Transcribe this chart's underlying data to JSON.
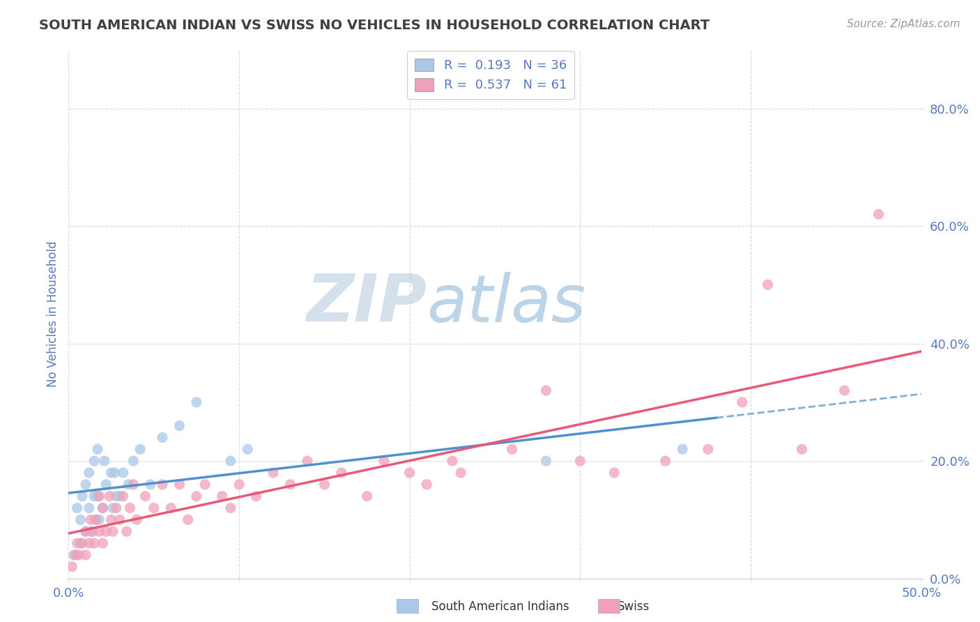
{
  "title": "SOUTH AMERICAN INDIAN VS SWISS NO VEHICLES IN HOUSEHOLD CORRELATION CHART",
  "source": "Source: ZipAtlas.com",
  "ylabel": "No Vehicles in Household",
  "xlim": [
    0.0,
    0.5
  ],
  "ylim": [
    0.0,
    0.9
  ],
  "xticks": [
    0.0,
    0.1,
    0.2,
    0.3,
    0.4,
    0.5
  ],
  "yticks": [
    0.0,
    0.2,
    0.4,
    0.6,
    0.8
  ],
  "xticklabels_sparse": [
    "0.0%",
    "",
    "",
    "",
    "",
    "50.0%"
  ],
  "yticklabels": [
    "0.0%",
    "20.0%",
    "40.0%",
    "60.0%",
    "80.0%"
  ],
  "r_blue": 0.193,
  "n_blue": 36,
  "r_pink": 0.537,
  "n_pink": 61,
  "color_blue": "#aac8e8",
  "color_pink": "#f0a0b8",
  "line_blue_solid": "#5090d0",
  "line_blue_dashed": "#80b0d8",
  "line_pink": "#e85878",
  "watermark_zip": "ZIP",
  "watermark_atlas": "atlas",
  "watermark_color_zip": "#b8cce0",
  "watermark_color_atlas": "#90b8d8",
  "title_color": "#404040",
  "axis_label_color": "#5878c0",
  "tick_color": "#5878c0",
  "grid_color": "#d0d0d0",
  "legend_label1": "R =  0.193   N = 36",
  "legend_label2": "R =  0.537   N = 61",
  "bottom_label1": "South American Indians",
  "bottom_label2": "Swiss",
  "blue_scatter_x": [
    0.003,
    0.005,
    0.007,
    0.007,
    0.008,
    0.01,
    0.01,
    0.012,
    0.012,
    0.013,
    0.015,
    0.015,
    0.016,
    0.017,
    0.017,
    0.018,
    0.02,
    0.021,
    0.022,
    0.025,
    0.026,
    0.027,
    0.028,
    0.03,
    0.032,
    0.035,
    0.038,
    0.042,
    0.048,
    0.055,
    0.065,
    0.075,
    0.095,
    0.105,
    0.28,
    0.36
  ],
  "blue_scatter_y": [
    0.04,
    0.12,
    0.06,
    0.1,
    0.14,
    0.08,
    0.16,
    0.12,
    0.18,
    0.08,
    0.14,
    0.2,
    0.1,
    0.14,
    0.22,
    0.1,
    0.12,
    0.2,
    0.16,
    0.18,
    0.12,
    0.18,
    0.14,
    0.14,
    0.18,
    0.16,
    0.2,
    0.22,
    0.16,
    0.24,
    0.26,
    0.3,
    0.2,
    0.22,
    0.2,
    0.22
  ],
  "pink_scatter_x": [
    0.002,
    0.004,
    0.005,
    0.006,
    0.008,
    0.01,
    0.01,
    0.012,
    0.013,
    0.014,
    0.015,
    0.016,
    0.018,
    0.018,
    0.02,
    0.02,
    0.022,
    0.024,
    0.025,
    0.026,
    0.028,
    0.03,
    0.032,
    0.034,
    0.036,
    0.038,
    0.04,
    0.045,
    0.05,
    0.055,
    0.06,
    0.065,
    0.07,
    0.075,
    0.08,
    0.09,
    0.095,
    0.1,
    0.11,
    0.12,
    0.13,
    0.14,
    0.15,
    0.16,
    0.175,
    0.185,
    0.2,
    0.21,
    0.225,
    0.23,
    0.26,
    0.28,
    0.3,
    0.32,
    0.35,
    0.375,
    0.395,
    0.41,
    0.43,
    0.455,
    0.475
  ],
  "pink_scatter_y": [
    0.02,
    0.04,
    0.06,
    0.04,
    0.06,
    0.04,
    0.08,
    0.06,
    0.1,
    0.08,
    0.06,
    0.1,
    0.08,
    0.14,
    0.06,
    0.12,
    0.08,
    0.14,
    0.1,
    0.08,
    0.12,
    0.1,
    0.14,
    0.08,
    0.12,
    0.16,
    0.1,
    0.14,
    0.12,
    0.16,
    0.12,
    0.16,
    0.1,
    0.14,
    0.16,
    0.14,
    0.12,
    0.16,
    0.14,
    0.18,
    0.16,
    0.2,
    0.16,
    0.18,
    0.14,
    0.2,
    0.18,
    0.16,
    0.2,
    0.18,
    0.22,
    0.32,
    0.2,
    0.18,
    0.2,
    0.22,
    0.3,
    0.5,
    0.22,
    0.32,
    0.62
  ]
}
